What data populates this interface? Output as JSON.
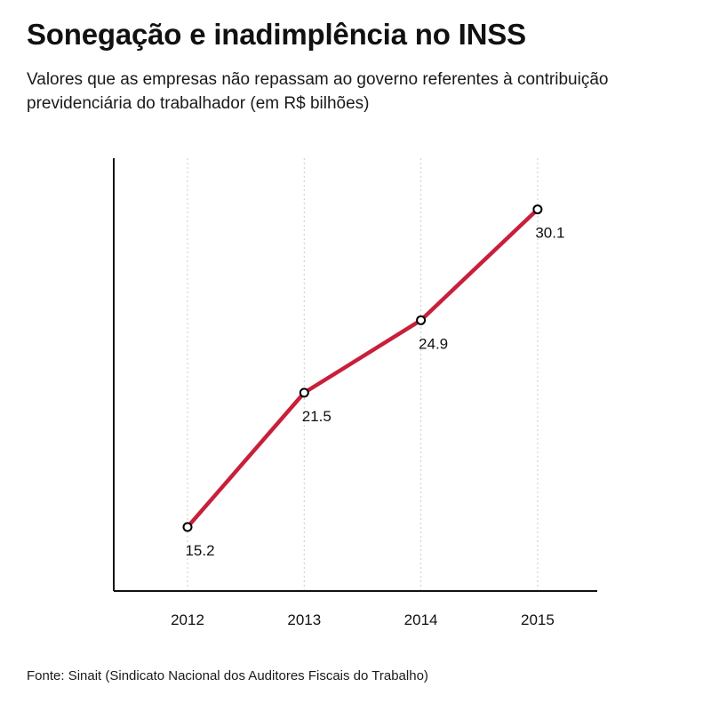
{
  "title": "Sonegação e inadimplência no INSS",
  "subtitle": "Valores que as empresas não repassam ao governo referentes à contribuição previdenciária do trabalhador (em R$ bilhões)",
  "source": "Fonte: Sinait (Sindicato Nacional dos Auditores Fiscais do Trabalho)",
  "colors": {
    "line": "#c8203a",
    "axis": "#111111",
    "grid": "#cccccc",
    "marker_fill": "#ffffff"
  },
  "chart_data": {
    "type": "line",
    "title": "Sonegação e inadimplência no INSS",
    "xlabel": "",
    "ylabel": "",
    "x": [
      "2012",
      "2013",
      "2014",
      "2015"
    ],
    "series": [
      {
        "values": [
          15.2,
          21.5,
          24.9,
          30.1
        ]
      }
    ],
    "data_labels": [
      "15.2",
      "21.5",
      "24.9",
      "30.1"
    ],
    "ylim": [
      12.2,
      32.5
    ],
    "grid": "vertical dashed",
    "legend": "none"
  }
}
